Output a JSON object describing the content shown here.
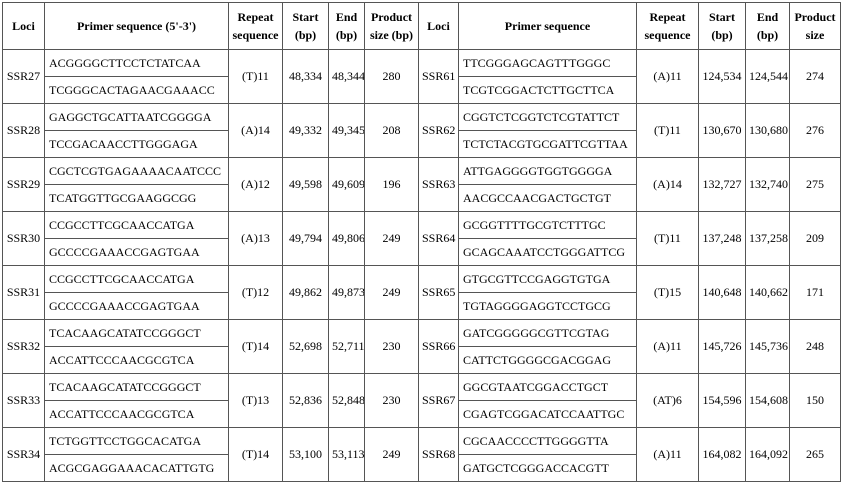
{
  "header": {
    "left": [
      "Loci",
      "Primer sequence (5'-3')",
      "Repeat sequence",
      "Start (bp)",
      "End (bp)",
      "Product size (bp)"
    ],
    "right": [
      "Loci",
      "Primer sequence",
      "Repeat sequence",
      "Start (bp)",
      "End (bp)",
      "Product size"
    ]
  },
  "rows": [
    {
      "left": {
        "locus": "SSR27",
        "primers": [
          "ACGGGGCTTCCTCTATCAA",
          "TCGGGCACTAGAACGAAACC"
        ],
        "repeat": "(T)11",
        "start": "48,334",
        "end": "48,344",
        "size": "280"
      },
      "right": {
        "locus": "SSR61",
        "primers": [
          "TTCGGGAGCAGTTTGGGC",
          "TCGTCGGACTCTTGCTTCA"
        ],
        "repeat": "(A)11",
        "start": "124,534",
        "end": "124,544",
        "size": "274"
      }
    },
    {
      "left": {
        "locus": "SSR28",
        "primers": [
          "GAGGCTGCATTAATCGGGGA",
          "TCCGACAACCTTGGGAGA"
        ],
        "repeat": "(A)14",
        "start": "49,332",
        "end": "49,345",
        "size": "208"
      },
      "right": {
        "locus": "SSR62",
        "primers": [
          "CGGTCTCGGTCTCGTATTCT",
          "TCTCTACGTGCGATTCGTTAA"
        ],
        "repeat": "(T)11",
        "start": "130,670",
        "end": "130,680",
        "size": "276"
      }
    },
    {
      "left": {
        "locus": "SSR29",
        "primers": [
          "CGCTCGTGAGAAAACAATCCC",
          "TCATGGTTGCGAAGGCGG"
        ],
        "repeat": "(A)12",
        "start": "49,598",
        "end": "49,609",
        "size": "196"
      },
      "right": {
        "locus": "SSR63",
        "primers": [
          "ATTGAGGGGTGGTGGGGA",
          "AACGCCAACGACTGCTGT"
        ],
        "repeat": "(A)14",
        "start": "132,727",
        "end": "132,740",
        "size": "275"
      }
    },
    {
      "left": {
        "locus": "SSR30",
        "primers": [
          "CCGCCTTCGCAACCATGA",
          "GCCCCGAAACCGAGTGAA"
        ],
        "repeat": "(A)13",
        "start": "49,794",
        "end": "49,806",
        "size": "249"
      },
      "right": {
        "locus": "SSR64",
        "primers": [
          "GCGGTTTTGCGTCTTTGC",
          "GCAGCAAATCCTGGGATTCG"
        ],
        "repeat": "(T)11",
        "start": "137,248",
        "end": "137,258",
        "size": "209"
      }
    },
    {
      "left": {
        "locus": "SSR31",
        "primers": [
          "CCGCCTTCGCAACCATGA",
          "GCCCCGAAACCGAGTGAA"
        ],
        "repeat": "(T)12",
        "start": "49,862",
        "end": "49,873",
        "size": "249"
      },
      "right": {
        "locus": "SSR65",
        "primers": [
          "GTGCGTTCCGAGGTGTGA",
          "TGTAGGGGAGGTCCTGCG"
        ],
        "repeat": "(T)15",
        "start": "140,648",
        "end": "140,662",
        "size": "171"
      }
    },
    {
      "left": {
        "locus": "SSR32",
        "primers": [
          "TCACAAGCATATCCGGGCT",
          "ACCATTCCCAACGCGTCA"
        ],
        "repeat": "(T)14",
        "start": "52,698",
        "end": "52,711",
        "size": "230"
      },
      "right": {
        "locus": "SSR66",
        "primers": [
          "GATCGGGGGCGTTCGTAG",
          "CATTCTGGGGCGACGGAG"
        ],
        "repeat": "(A)11",
        "start": "145,726",
        "end": "145,736",
        "size": "248"
      }
    },
    {
      "left": {
        "locus": "SSR33",
        "primers": [
          "TCACAAGCATATCCGGGCT",
          "ACCATTCCCAACGCGTCA"
        ],
        "repeat": "(T)13",
        "start": "52,836",
        "end": "52,848",
        "size": "230"
      },
      "right": {
        "locus": "SSR67",
        "primers": [
          "GGCGTAATCGGACCTGCT",
          "CGAGTCGGACATCCAATTGC"
        ],
        "repeat": "(AT)6",
        "start": "154,596",
        "end": "154,608",
        "size": "150"
      }
    },
    {
      "left": {
        "locus": "SSR34",
        "primers": [
          "TCTGGTTCCTGGCACATGA",
          "ACGCGAGGAAACACATTGTG"
        ],
        "repeat": "(T)14",
        "start": "53,100",
        "end": "53,113",
        "size": "249"
      },
      "right": {
        "locus": "SSR68",
        "primers": [
          "CGCAACCCCTTGGGGTTA",
          "GATGCTCGGGACCACGTT"
        ],
        "repeat": "(A)11",
        "start": "164,082",
        "end": "164,092",
        "size": "265"
      }
    }
  ]
}
